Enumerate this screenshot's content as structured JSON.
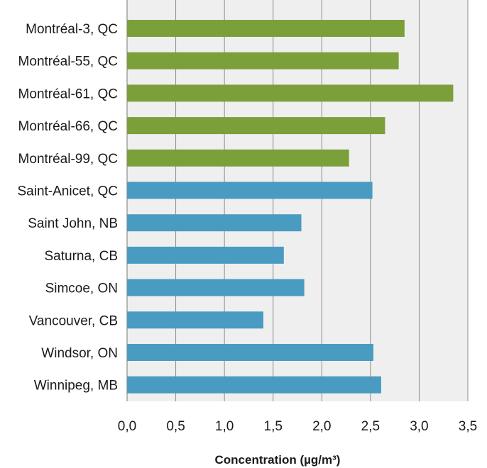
{
  "chart_data": {
    "type": "bar",
    "orientation": "horizontal",
    "categories": [
      "Montréal-3, QC",
      "Montréal-55, QC",
      "Montréal-61, QC",
      "Montréal-66, QC",
      "Montréal-99, QC",
      "Saint-Anicet, QC",
      "Saint John, NB",
      "Saturna, CB",
      "Simcoe, ON",
      "Vancouver, CB",
      "Windsor, ON",
      "Winnipeg, MB"
    ],
    "values": [
      2.85,
      2.79,
      3.35,
      2.65,
      2.28,
      2.52,
      1.79,
      1.61,
      1.82,
      1.4,
      2.53,
      2.61
    ],
    "bar_colors": [
      "#7ba03a",
      "#7ba03a",
      "#7ba03a",
      "#7ba03a",
      "#7ba03a",
      "#4a9bc1",
      "#4a9bc1",
      "#4a9bc1",
      "#4a9bc1",
      "#4a9bc1",
      "#4a9bc1",
      "#4a9bc1"
    ],
    "xlabel": "Concentration (µg/m³)",
    "xlim": [
      0,
      3.5
    ],
    "xticks": [
      "0,0",
      "0,5",
      "1,0",
      "1,5",
      "2,0",
      "2,5",
      "3,0",
      "3,5"
    ],
    "grid": "vertical",
    "legend": "none",
    "colors": {
      "plot_background": "#efeff0",
      "gridline": "#8c8c8c",
      "text": "#1a1a1a"
    }
  }
}
